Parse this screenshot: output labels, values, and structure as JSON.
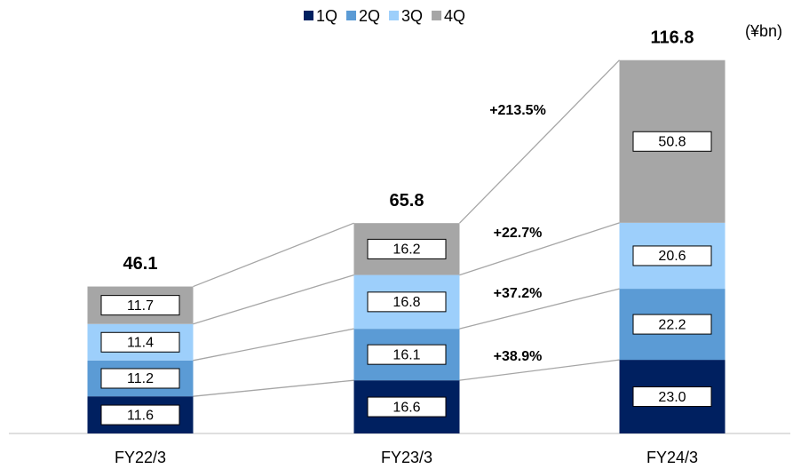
{
  "chart_data": {
    "type": "stacked-bar",
    "unit_label": "(¥bn)",
    "categories": [
      "FY22/3",
      "FY23/3",
      "FY24/3"
    ],
    "series": [
      {
        "name": "1Q",
        "color": "#002060",
        "values": [
          11.6,
          16.6,
          23.0
        ],
        "value_labels": [
          "11.6",
          "16.6",
          "23.0"
        ]
      },
      {
        "name": "2Q",
        "color": "#5b9bd5",
        "values": [
          11.2,
          16.1,
          22.2
        ],
        "value_labels": [
          "11.2",
          "16.1",
          "22.2"
        ]
      },
      {
        "name": "3Q",
        "color": "#9dcffb",
        "values": [
          11.4,
          16.8,
          20.6
        ],
        "value_labels": [
          "11.4",
          "16.8",
          "20.6"
        ]
      },
      {
        "name": "4Q",
        "color": "#a6a6a6",
        "values": [
          11.7,
          16.2,
          50.8
        ],
        "value_labels": [
          "11.7",
          "16.2",
          "50.8"
        ]
      }
    ],
    "totals": [
      46.1,
      65.8,
      116.8
    ],
    "annotations": [
      "+38.9%",
      "+37.2%",
      "+22.7%",
      "+213.5%"
    ],
    "legend": "top"
  }
}
